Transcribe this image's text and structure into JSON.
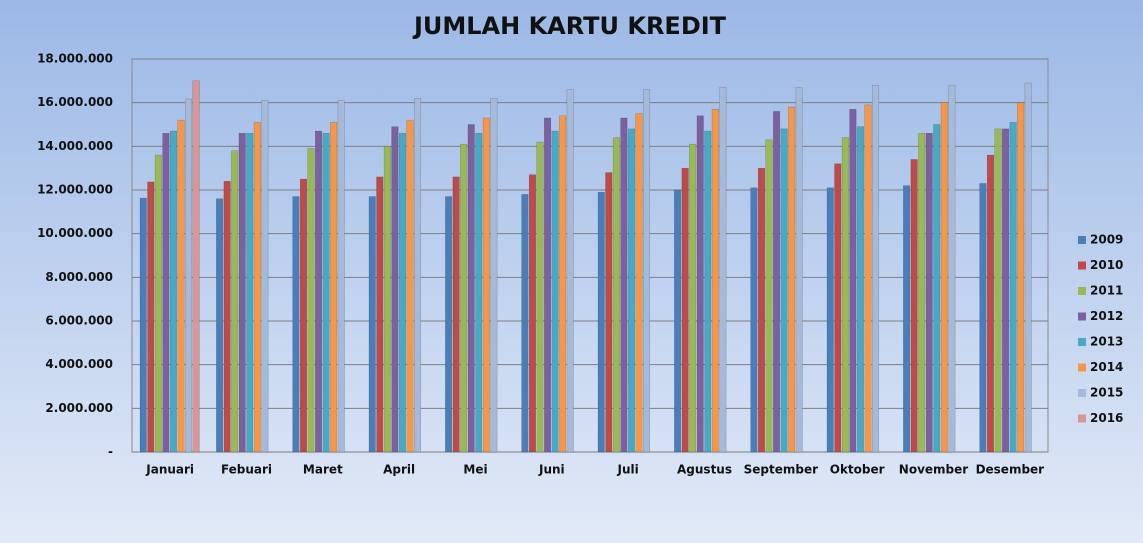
{
  "chart_data": {
    "type": "bar",
    "title": "JUMLAH KARTU KREDIT",
    "categories": [
      "Januari",
      "Febuari",
      "Maret",
      "April",
      "Mei",
      "Juni",
      "Juli",
      "Agustus",
      "September",
      "Oktober",
      "November",
      "Desember"
    ],
    "series": [
      {
        "name": "2009",
        "color": "#4a7ebb",
        "values": [
          11630000,
          11600000,
          11700000,
          11700000,
          11700000,
          11800000,
          11900000,
          12000000,
          12100000,
          12100000,
          12200000,
          12300000
        ]
      },
      {
        "name": "2010",
        "color": "#be4b48",
        "values": [
          12370000,
          12400000,
          12500000,
          12600000,
          12600000,
          12700000,
          12800000,
          13000000,
          13000000,
          13200000,
          13400000,
          13600000
        ]
      },
      {
        "name": "2011",
        "color": "#98b954",
        "values": [
          13600000,
          13800000,
          13900000,
          14000000,
          14100000,
          14200000,
          14400000,
          14100000,
          14300000,
          14400000,
          14600000,
          14800000
        ]
      },
      {
        "name": "2012",
        "color": "#7d60a0",
        "values": [
          14600000,
          14600000,
          14700000,
          14900000,
          15000000,
          15300000,
          15300000,
          15400000,
          15600000,
          15700000,
          14600000,
          14800000
        ]
      },
      {
        "name": "2013",
        "color": "#46aac5",
        "values": [
          14700000,
          14600000,
          14600000,
          14600000,
          14600000,
          14700000,
          14800000,
          14700000,
          14800000,
          14900000,
          15000000,
          15100000
        ]
      },
      {
        "name": "2014",
        "color": "#f79646",
        "values": [
          15200000,
          15100000,
          15100000,
          15200000,
          15300000,
          15400000,
          15500000,
          15700000,
          15800000,
          15900000,
          16000000,
          16000000
        ]
      },
      {
        "name": "2015",
        "color": "#a5b9d8",
        "values": [
          16170000,
          16100000,
          16100000,
          16200000,
          16200000,
          16600000,
          16600000,
          16700000,
          16700000,
          16800000,
          16800000,
          16900000
        ]
      },
      {
        "name": "2016",
        "color": "#d99694",
        "values": [
          17000000,
          null,
          null,
          null,
          null,
          null,
          null,
          null,
          null,
          null,
          null,
          null
        ]
      }
    ],
    "ylim": [
      0,
      18000000
    ],
    "yticks": [
      {
        "value": 0,
        "label": "-"
      },
      {
        "value": 2000000,
        "label": "2.000.000"
      },
      {
        "value": 4000000,
        "label": "4.000.000"
      },
      {
        "value": 6000000,
        "label": "6.000.000"
      },
      {
        "value": 8000000,
        "label": "8.000.000"
      },
      {
        "value": 10000000,
        "label": "10.000.000"
      },
      {
        "value": 12000000,
        "label": "12.000.000"
      },
      {
        "value": 14000000,
        "label": "14.000.000"
      },
      {
        "value": 16000000,
        "label": "16.000.000"
      },
      {
        "value": 18000000,
        "label": "18.000.000"
      }
    ],
    "grid": true,
    "legend": "right"
  }
}
